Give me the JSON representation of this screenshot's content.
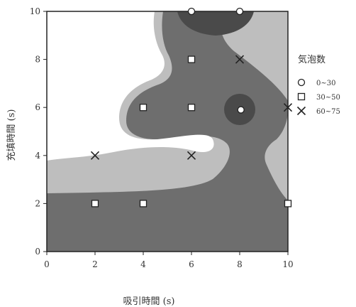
{
  "chart_data": {
    "type": "scatter",
    "subtype": "filled-contour",
    "xlabel": "吸引時間 (s)",
    "ylabel": "充填時間 (s)",
    "xlim": [
      0,
      10
    ],
    "ylim": [
      0,
      10
    ],
    "xticks": [
      "0",
      "2",
      "4",
      "6",
      "8",
      "10"
    ],
    "yticks": [
      "0",
      "2",
      "4",
      "6",
      "8",
      "10"
    ],
    "legend": {
      "title": "気泡数",
      "placement": "right",
      "entries": [
        {
          "marker": "circle",
          "label": "0~30"
        },
        {
          "marker": "square",
          "label": "30~50"
        },
        {
          "marker": "cross",
          "label": "60~75"
        }
      ]
    },
    "series": [
      {
        "marker": "circle",
        "points": [
          [
            6,
            10
          ],
          [
            8,
            10
          ],
          [
            8.05,
            5.9
          ]
        ]
      },
      {
        "marker": "square",
        "points": [
          [
            6,
            8
          ],
          [
            4,
            6
          ],
          [
            6,
            6
          ],
          [
            2,
            2
          ],
          [
            4,
            2
          ],
          [
            10,
            2
          ]
        ]
      },
      {
        "marker": "cross",
        "points": [
          [
            8,
            8
          ],
          [
            10,
            6
          ],
          [
            2,
            4
          ],
          [
            6,
            4
          ]
        ]
      }
    ],
    "contour_levels": [
      {
        "shade": "white",
        "color": "#ffffff"
      },
      {
        "shade": "light",
        "color": "#bebebe"
      },
      {
        "shade": "medium",
        "color": "#6e6e6e"
      },
      {
        "shade": "dark",
        "color": "#4a4a4a"
      }
    ]
  }
}
